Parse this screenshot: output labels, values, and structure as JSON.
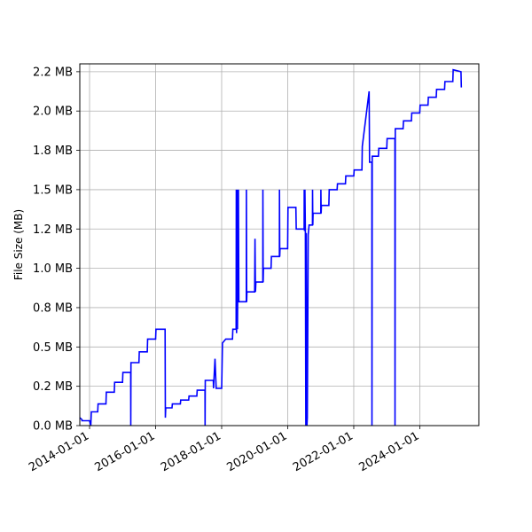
{
  "chart_data": {
    "type": "line",
    "title": "",
    "xlabel": "",
    "ylabel": "File Size (MB)",
    "grid": true,
    "x_ticks": [
      "2014-01-01",
      "2016-01-01",
      "2018-01-01",
      "2020-01-01",
      "2022-01-01",
      "2024-01-01"
    ],
    "y_ticks": [
      {
        "value": 0.0,
        "label": "0.0 MB"
      },
      {
        "value": 0.2,
        "label": "0.2 MB"
      },
      {
        "value": 0.4,
        "label": "0.5 MB"
      },
      {
        "value": 0.6,
        "label": "0.8 MB"
      },
      {
        "value": 0.8,
        "label": "1.0 MB"
      },
      {
        "value": 1.0,
        "label": "1.2 MB"
      },
      {
        "value": 1.2,
        "label": "1.5 MB"
      },
      {
        "value": 1.4,
        "label": "1.8 MB"
      },
      {
        "value": 1.6,
        "label": "2.0 MB"
      },
      {
        "value": 1.8,
        "label": "2.2 MB"
      }
    ],
    "xlim": [
      "2013-09-15",
      "2025-10-15"
    ],
    "ylim": [
      0.0,
      1.84
    ],
    "series": [
      {
        "color": "#0000ff",
        "points": [
          [
            "2013-09-15",
            0.04
          ],
          [
            "2013-10-10",
            0.03
          ],
          [
            "2013-10-10",
            0.025
          ],
          [
            "2014-01-01",
            0.025
          ],
          [
            "2014-01-15",
            0.0
          ],
          [
            "2014-01-20",
            0.07
          ],
          [
            "2014-04-01",
            0.07
          ],
          [
            "2014-04-05",
            0.11
          ],
          [
            "2014-07-01",
            0.11
          ],
          [
            "2014-07-05",
            0.17
          ],
          [
            "2014-10-01",
            0.17
          ],
          [
            "2014-10-05",
            0.22
          ],
          [
            "2015-01-01",
            0.22
          ],
          [
            "2015-01-05",
            0.27
          ],
          [
            "2015-04-01",
            0.27
          ],
          [
            "2015-04-02",
            0.0
          ],
          [
            "2015-04-04",
            0.32
          ],
          [
            "2015-07-01",
            0.32
          ],
          [
            "2015-07-05",
            0.375
          ],
          [
            "2015-10-01",
            0.375
          ],
          [
            "2015-10-05",
            0.44
          ],
          [
            "2016-01-01",
            0.44
          ],
          [
            "2016-01-05",
            0.49
          ],
          [
            "2016-04-15",
            0.49
          ],
          [
            "2016-04-18",
            0.04
          ],
          [
            "2016-04-22",
            0.09
          ],
          [
            "2016-07-01",
            0.09
          ],
          [
            "2016-07-05",
            0.11
          ],
          [
            "2016-10-01",
            0.11
          ],
          [
            "2016-10-05",
            0.13
          ],
          [
            "2017-01-01",
            0.13
          ],
          [
            "2017-01-05",
            0.15
          ],
          [
            "2017-04-01",
            0.15
          ],
          [
            "2017-04-05",
            0.18
          ],
          [
            "2017-07-01",
            0.18
          ],
          [
            "2017-07-02",
            0.0
          ],
          [
            "2017-07-04",
            0.23
          ],
          [
            "2017-10-01",
            0.23
          ],
          [
            "2017-10-03",
            0.19
          ],
          [
            "2017-10-20",
            0.34
          ],
          [
            "2017-11-01",
            0.19
          ],
          [
            "2018-01-01",
            0.19
          ],
          [
            "2018-01-10",
            0.42
          ],
          [
            "2018-02-15",
            0.44
          ],
          [
            "2018-05-01",
            0.44
          ],
          [
            "2018-05-05",
            0.49
          ],
          [
            "2018-06-10",
            0.49
          ],
          [
            "2018-06-12",
            1.2
          ],
          [
            "2018-06-15",
            0.47
          ],
          [
            "2018-06-20",
            1.2
          ],
          [
            "2018-06-25",
            0.49
          ],
          [
            "2018-07-05",
            1.2
          ],
          [
            "2018-07-10",
            0.63
          ],
          [
            "2018-10-01",
            0.63
          ],
          [
            "2018-10-02",
            1.2
          ],
          [
            "2018-10-05",
            0.63
          ],
          [
            "2018-10-08",
            0.68
          ],
          [
            "2019-01-01",
            0.68
          ],
          [
            "2019-01-05",
            0.95
          ],
          [
            "2019-01-10",
            0.68
          ],
          [
            "2019-01-15",
            0.73
          ],
          [
            "2019-04-01",
            0.73
          ],
          [
            "2019-04-02",
            1.2
          ],
          [
            "2019-04-05",
            0.73
          ],
          [
            "2019-04-08",
            0.8
          ],
          [
            "2019-07-01",
            0.8
          ],
          [
            "2019-07-05",
            0.86
          ],
          [
            "2019-10-01",
            0.86
          ],
          [
            "2019-10-02",
            1.2
          ],
          [
            "2019-10-05",
            0.86
          ],
          [
            "2019-10-08",
            0.9
          ],
          [
            "2020-01-01",
            0.9
          ],
          [
            "2020-01-05",
            1.11
          ],
          [
            "2020-04-01",
            1.11
          ],
          [
            "2020-04-05",
            1.0
          ],
          [
            "2020-07-01",
            1.0
          ],
          [
            "2020-07-02",
            1.2
          ],
          [
            "2020-07-05",
            0.99
          ],
          [
            "2020-07-10",
            1.2
          ],
          [
            "2020-07-15",
            0.99
          ],
          [
            "2020-07-20",
            0.0
          ],
          [
            "2020-07-25",
            0.98
          ],
          [
            "2020-08-01",
            0.0
          ],
          [
            "2020-08-05",
            0.04
          ],
          [
            "2020-08-10",
            0.48
          ],
          [
            "2020-08-15",
            0.97
          ],
          [
            "2020-08-25",
            1.02
          ],
          [
            "2020-10-01",
            1.02
          ],
          [
            "2020-10-02",
            1.2
          ],
          [
            "2020-10-05",
            1.02
          ],
          [
            "2020-10-08",
            1.08
          ],
          [
            "2021-01-01",
            1.08
          ],
          [
            "2021-01-02",
            1.2
          ],
          [
            "2021-01-05",
            1.08
          ],
          [
            "2021-01-08",
            1.12
          ],
          [
            "2021-04-01",
            1.12
          ],
          [
            "2021-04-05",
            1.2
          ],
          [
            "2021-07-01",
            1.2
          ],
          [
            "2021-07-05",
            1.23
          ],
          [
            "2021-10-01",
            1.23
          ],
          [
            "2021-10-05",
            1.27
          ],
          [
            "2022-01-01",
            1.27
          ],
          [
            "2022-01-05",
            1.3
          ],
          [
            "2022-04-01",
            1.3
          ],
          [
            "2022-04-05",
            1.42
          ],
          [
            "2022-06-20",
            1.7
          ],
          [
            "2022-06-25",
            1.34
          ],
          [
            "2022-07-20",
            1.34
          ],
          [
            "2022-07-21",
            0.0
          ],
          [
            "2022-07-24",
            1.37
          ],
          [
            "2022-10-01",
            1.37
          ],
          [
            "2022-10-05",
            1.41
          ],
          [
            "2023-01-01",
            1.41
          ],
          [
            "2023-01-05",
            1.46
          ],
          [
            "2023-04-01",
            1.46
          ],
          [
            "2023-04-02",
            0.0
          ],
          [
            "2023-04-05",
            1.51
          ],
          [
            "2023-07-01",
            1.51
          ],
          [
            "2023-07-05",
            1.55
          ],
          [
            "2023-10-01",
            1.55
          ],
          [
            "2023-10-05",
            1.59
          ],
          [
            "2024-01-01",
            1.59
          ],
          [
            "2024-01-05",
            1.63
          ],
          [
            "2024-04-01",
            1.63
          ],
          [
            "2024-04-05",
            1.67
          ],
          [
            "2024-07-01",
            1.67
          ],
          [
            "2024-07-05",
            1.71
          ],
          [
            "2024-10-01",
            1.71
          ],
          [
            "2024-10-05",
            1.75
          ],
          [
            "2025-01-01",
            1.75
          ],
          [
            "2025-01-05",
            1.81
          ],
          [
            "2025-04-01",
            1.8
          ],
          [
            "2025-04-05",
            1.72
          ]
        ]
      }
    ]
  }
}
